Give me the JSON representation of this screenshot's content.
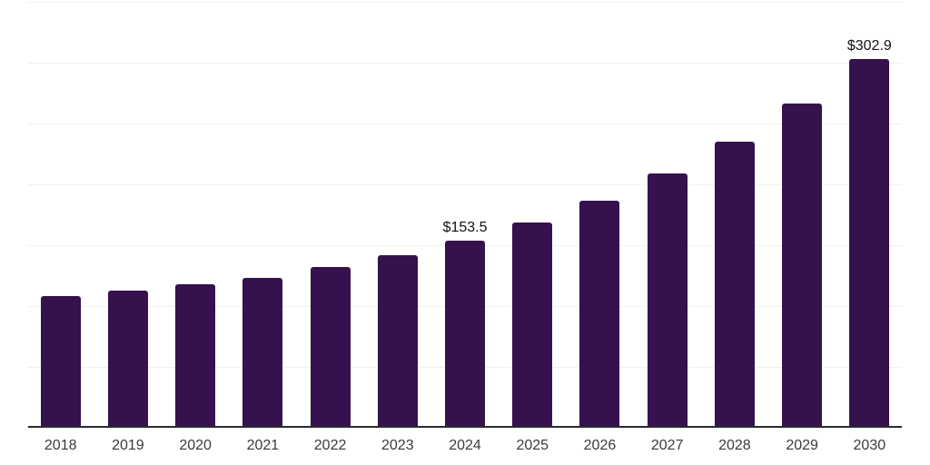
{
  "chart_data": {
    "type": "bar",
    "title": "",
    "xlabel": "",
    "ylabel": "",
    "categories": [
      "2018",
      "2019",
      "2020",
      "2021",
      "2022",
      "2023",
      "2024",
      "2025",
      "2026",
      "2027",
      "2028",
      "2029",
      "2030"
    ],
    "values": [
      108.2,
      112.5,
      117.8,
      123.3,
      132.0,
      141.5,
      153.5,
      168.5,
      186.4,
      209.2,
      235.2,
      266.2,
      302.9
    ],
    "bar_labels": [
      null,
      null,
      null,
      null,
      null,
      null,
      "$153.5",
      null,
      null,
      null,
      null,
      null,
      "$302.9"
    ],
    "annotations": [
      {
        "category": "2024",
        "text": "$153.5"
      },
      {
        "category": "2030",
        "text": "$302.9"
      }
    ],
    "currency_prefix": "$",
    "ylim": [
      0,
      350
    ],
    "gridline_step": 50,
    "grid": true,
    "y_tick_labels_shown": false,
    "legend": "none"
  },
  "style": {
    "bar_color": "#35114d",
    "gridline_color": "#f0f0f0",
    "axis_color": "#2a2a32",
    "tick_label_color": "#3a3a3a",
    "data_label_color": "#111111",
    "background_color": "#ffffff"
  }
}
